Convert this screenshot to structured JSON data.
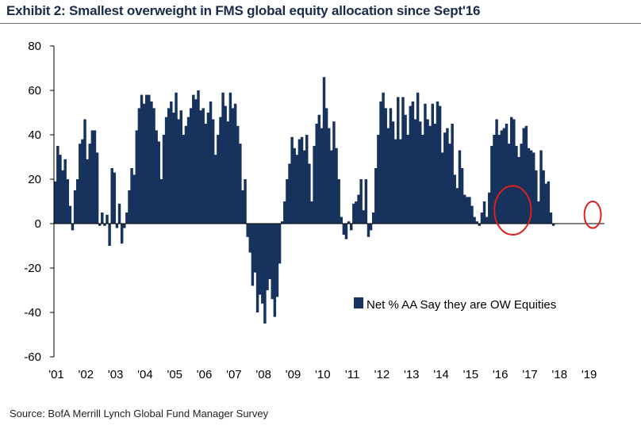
{
  "title": "Exhibit 2: Smallest overweight in FMS global equity allocation since Sept'16",
  "source": "Source: BofA Merrill Lynch Global Fund Manager Survey",
  "chart_data": {
    "type": "bar",
    "title": "Exhibit 2: Smallest overweight in FMS global equity allocation since Sept'16",
    "xlabel": "",
    "ylabel": "",
    "ylim": [
      -60,
      80
    ],
    "yticks": [
      80,
      60,
      40,
      20,
      0,
      -20,
      -40,
      -60
    ],
    "xlim": [
      2001.0,
      2019.6
    ],
    "xtick_labels": [
      "'01",
      "'02",
      "'03",
      "'04",
      "'05",
      "'06",
      "'07",
      "'08",
      "'09",
      "'10",
      "'11",
      "'12",
      "'13",
      "'14",
      "'15",
      "'16",
      "'17",
      "'18",
      "'19"
    ],
    "legend": {
      "label": "Net % AA Say they are OW Equities",
      "position": "center-right"
    },
    "bar_color": "#17325c",
    "annotations": [
      {
        "type": "circle",
        "color": "#e0201c",
        "x_center": 2016.5,
        "y_center": 6,
        "x_radius": 0.62,
        "y_radius": 11
      },
      {
        "type": "circle",
        "color": "#e0201c",
        "x_center": 2019.2,
        "y_center": 4,
        "x_radius": 0.28,
        "y_radius": 6
      }
    ],
    "series": [
      {
        "name": "Net % AA Say they are OW Equities",
        "start": 2001.0,
        "step": 0.0833,
        "values": [
          19,
          35,
          31,
          24,
          29,
          20,
          8,
          -3,
          15,
          20,
          36,
          38,
          47,
          29,
          36,
          42,
          42,
          32,
          -1,
          5,
          -1,
          4,
          -10,
          25,
          23,
          -2,
          9,
          -9,
          -2,
          5,
          15,
          25,
          22,
          42,
          52,
          58,
          54,
          58,
          58,
          55,
          52,
          42,
          37,
          20,
          40,
          48,
          52,
          55,
          50,
          59,
          47,
          51,
          40,
          44,
          48,
          52,
          58,
          56,
          60,
          51,
          52,
          45,
          50,
          55,
          47,
          31,
          40,
          48,
          59,
          53,
          46,
          59,
          52,
          54,
          44,
          36,
          15,
          20,
          -6,
          -13,
          -28,
          -22,
          -40,
          -32,
          -36,
          -45,
          -30,
          -25,
          -34,
          -42,
          -33,
          -18,
          1,
          10,
          20,
          27,
          39,
          34,
          31,
          38,
          39,
          33,
          40,
          27,
          10,
          35,
          45,
          49,
          43,
          66,
          52,
          43,
          33,
          46,
          34,
          20,
          3,
          -5,
          -7,
          1,
          -3,
          9,
          10,
          13,
          20,
          6,
          20,
          -6,
          -3,
          5,
          25,
          40,
          55,
          59,
          52,
          43,
          52,
          46,
          38,
          57,
          38,
          57,
          49,
          40,
          53,
          55,
          47,
          59,
          46,
          40,
          54,
          47,
          44,
          54,
          45,
          55,
          53,
          32,
          41,
          43,
          36,
          45,
          22,
          16,
          33,
          25,
          13,
          12,
          12,
          8,
          3,
          1,
          -1,
          5,
          10,
          3,
          14,
          35,
          40,
          47,
          40,
          42,
          43,
          45,
          36,
          48,
          47,
          35,
          30,
          36,
          43,
          44,
          34,
          33,
          32,
          24,
          10,
          33,
          24,
          18,
          19,
          5,
          -1,
          0
        ]
      }
    ]
  }
}
